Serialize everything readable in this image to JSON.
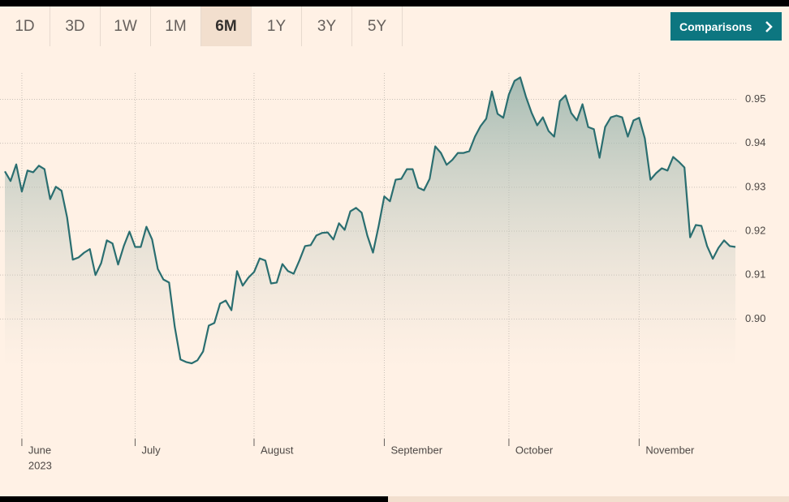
{
  "ranges": [
    "1D",
    "3D",
    "1W",
    "1M",
    "6M",
    "1Y",
    "3Y",
    "5Y"
  ],
  "selected_range": 4,
  "comparisons": "Comparisons",
  "chart_data": {
    "type": "area-line",
    "color": "#2a6e70",
    "grid": true,
    "categories": [
      null,
      null,
      null,
      "June",
      null,
      null,
      null,
      null,
      null,
      null,
      null,
      null,
      null,
      null,
      null,
      null,
      null,
      null,
      null,
      null,
      null,
      null,
      null,
      "July",
      null,
      null,
      null,
      null,
      null,
      null,
      null,
      null,
      null,
      null,
      null,
      null,
      null,
      null,
      null,
      null,
      null,
      null,
      null,
      null,
      "August",
      null,
      null,
      null,
      null,
      null,
      null,
      null,
      null,
      null,
      null,
      null,
      null,
      null,
      null,
      null,
      null,
      null,
      null,
      null,
      null,
      null,
      null,
      "September",
      null,
      null,
      null,
      null,
      null,
      null,
      null,
      null,
      null,
      null,
      null,
      null,
      null,
      null,
      null,
      null,
      null,
      null,
      null,
      null,
      null,
      "October",
      null,
      null,
      null,
      null,
      null,
      null,
      null,
      null,
      null,
      null,
      null,
      null,
      null,
      null,
      null,
      null,
      null,
      null,
      null,
      null,
      null,
      null,
      "November",
      null,
      null,
      null,
      null,
      null,
      null,
      null,
      null,
      null,
      null,
      null,
      null,
      null,
      null,
      null,
      null,
      null
    ],
    "year_label": "2023",
    "values": [
      0.9336,
      0.9314,
      0.9352,
      0.929,
      0.9338,
      0.9334,
      0.9349,
      0.9341,
      0.9273,
      0.9301,
      0.9292,
      0.9231,
      0.9135,
      0.914,
      0.9151,
      0.9159,
      0.91,
      0.9127,
      0.9179,
      0.9172,
      0.9124,
      0.9166,
      0.9199,
      0.9164,
      0.9164,
      0.921,
      0.9181,
      0.9114,
      0.909,
      0.9083,
      0.8982,
      0.8908,
      0.8902,
      0.8899,
      0.8906,
      0.8926,
      0.8985,
      0.8991,
      0.9035,
      0.9042,
      0.902,
      0.9109,
      0.9076,
      0.9094,
      0.9107,
      0.9138,
      0.9133,
      0.9081,
      0.9083,
      0.9125,
      0.9109,
      0.9103,
      0.9133,
      0.9166,
      0.9168,
      0.919,
      0.9196,
      0.9197,
      0.9181,
      0.9218,
      0.9203,
      0.9245,
      0.9253,
      0.9242,
      0.919,
      0.9151,
      0.9212,
      0.9279,
      0.9268,
      0.9317,
      0.9319,
      0.9341,
      0.9341,
      0.9299,
      0.9293,
      0.9319,
      0.9393,
      0.9378,
      0.9351,
      0.9362,
      0.9378,
      0.9378,
      0.9382,
      0.9415,
      0.9439,
      0.9456,
      0.9518,
      0.9467,
      0.9458,
      0.9511,
      0.9542,
      0.955,
      0.9506,
      0.947,
      0.9441,
      0.9459,
      0.9428,
      0.9415,
      0.9496,
      0.9509,
      0.9469,
      0.9452,
      0.9489,
      0.9437,
      0.9432,
      0.9367,
      0.9437,
      0.9459,
      0.9463,
      0.9459,
      0.9415,
      0.9452,
      0.9458,
      0.9411,
      0.9317,
      0.9332,
      0.9343,
      0.9338,
      0.9369,
      0.9358,
      0.9345,
      0.9186,
      0.9214,
      0.9212,
      0.9166,
      0.9137,
      0.9162,
      0.9179,
      0.9166,
      0.9164
    ],
    "ylim": [
      0.872,
      0.956
    ],
    "yticks": [
      {
        "value": 0.9,
        "label": "0.90"
      },
      0.91,
      0.92,
      0.93,
      0.94,
      0.95
    ]
  }
}
